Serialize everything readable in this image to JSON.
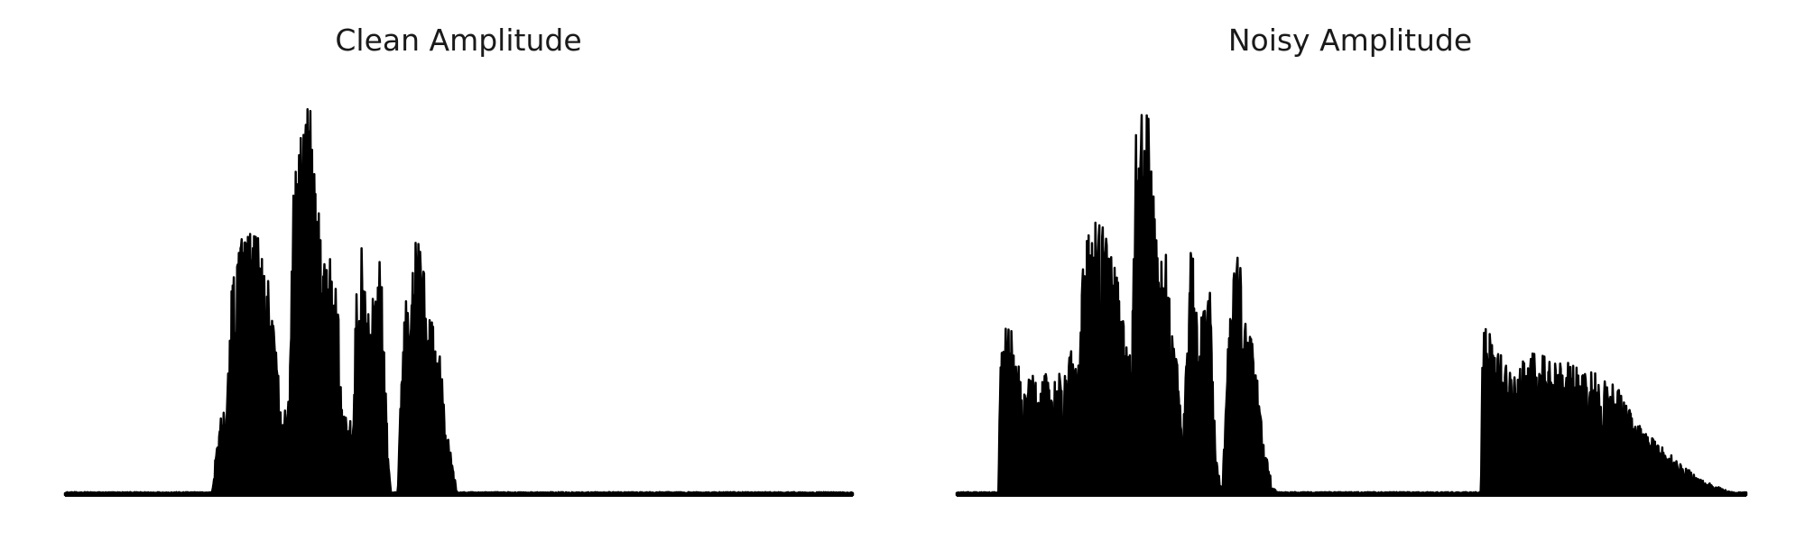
{
  "chart_data": [
    {
      "type": "area",
      "title": "Clean Amplitude",
      "axes_visible": false,
      "xlim": [
        0,
        100
      ],
      "ylim": [
        0,
        1.0
      ],
      "fill_color": "#000000",
      "envelope": [
        [
          0,
          0.0
        ],
        [
          18.5,
          0.0
        ],
        [
          18.8,
          0.02
        ],
        [
          19.2,
          0.12
        ],
        [
          19.8,
          0.2
        ],
        [
          20.5,
          0.22
        ],
        [
          21.0,
          0.48
        ],
        [
          21.6,
          0.58
        ],
        [
          22.2,
          0.64
        ],
        [
          22.8,
          0.62
        ],
        [
          23.4,
          0.66
        ],
        [
          24.2,
          0.64
        ],
        [
          25.2,
          0.6
        ],
        [
          26.0,
          0.5
        ],
        [
          26.6,
          0.38
        ],
        [
          27.2,
          0.28
        ],
        [
          27.8,
          0.2
        ],
        [
          28.4,
          0.26
        ],
        [
          29.0,
          0.76
        ],
        [
          29.6,
          0.86
        ],
        [
          30.2,
          0.94
        ],
        [
          30.8,
          1.0
        ],
        [
          31.5,
          0.9
        ],
        [
          32.0,
          0.74
        ],
        [
          32.6,
          0.64
        ],
        [
          33.2,
          0.6
        ],
        [
          33.8,
          0.6
        ],
        [
          34.6,
          0.54
        ],
        [
          35.2,
          0.2
        ],
        [
          36.6,
          0.18
        ],
        [
          37.0,
          0.6
        ],
        [
          37.6,
          0.66
        ],
        [
          38.2,
          0.5
        ],
        [
          38.8,
          0.44
        ],
        [
          39.4,
          0.56
        ],
        [
          40.2,
          0.62
        ],
        [
          41.0,
          0.1
        ],
        [
          41.4,
          0.0
        ],
        [
          42.2,
          0.0
        ],
        [
          42.6,
          0.3
        ],
        [
          43.2,
          0.5
        ],
        [
          44.0,
          0.52
        ],
        [
          44.6,
          0.66
        ],
        [
          45.2,
          0.62
        ],
        [
          45.8,
          0.5
        ],
        [
          46.6,
          0.42
        ],
        [
          47.6,
          0.38
        ],
        [
          48.2,
          0.2
        ],
        [
          49.0,
          0.1
        ],
        [
          49.8,
          0.0
        ],
        [
          100,
          0.0
        ]
      ]
    },
    {
      "type": "area",
      "title": "Noisy Amplitude",
      "axes_visible": false,
      "xlim": [
        0,
        100
      ],
      "ylim": [
        0,
        1.0
      ],
      "fill_color": "#000000",
      "envelope": [
        [
          0,
          0.0
        ],
        [
          5.3,
          0.0
        ],
        [
          5.6,
          0.42
        ],
        [
          6.0,
          0.43
        ],
        [
          7.0,
          0.4
        ],
        [
          7.8,
          0.32
        ],
        [
          8.6,
          0.3
        ],
        [
          9.4,
          0.3
        ],
        [
          10.4,
          0.28
        ],
        [
          11.4,
          0.3
        ],
        [
          12.6,
          0.3
        ],
        [
          13.8,
          0.3
        ],
        [
          14.6,
          0.38
        ],
        [
          15.4,
          0.33
        ],
        [
          16.0,
          0.58
        ],
        [
          16.8,
          0.68
        ],
        [
          17.6,
          0.74
        ],
        [
          18.6,
          0.7
        ],
        [
          19.4,
          0.62
        ],
        [
          20.2,
          0.55
        ],
        [
          21.0,
          0.46
        ],
        [
          21.6,
          0.36
        ],
        [
          22.2,
          0.4
        ],
        [
          22.6,
          0.88
        ],
        [
          23.2,
          0.92
        ],
        [
          23.8,
          1.0
        ],
        [
          24.4,
          0.9
        ],
        [
          24.8,
          0.76
        ],
        [
          25.4,
          0.62
        ],
        [
          26.0,
          0.58
        ],
        [
          26.8,
          0.6
        ],
        [
          27.8,
          0.38
        ],
        [
          28.6,
          0.12
        ],
        [
          29.0,
          0.3
        ],
        [
          29.6,
          0.62
        ],
        [
          30.2,
          0.56
        ],
        [
          30.8,
          0.4
        ],
        [
          31.4,
          0.52
        ],
        [
          32.0,
          0.58
        ],
        [
          32.8,
          0.1
        ],
        [
          33.6,
          0.0
        ],
        [
          34.0,
          0.2
        ],
        [
          34.6,
          0.5
        ],
        [
          35.2,
          0.56
        ],
        [
          35.8,
          0.6
        ],
        [
          36.6,
          0.42
        ],
        [
          37.4,
          0.38
        ],
        [
          38.0,
          0.3
        ],
        [
          39.0,
          0.12
        ],
        [
          40.0,
          0.02
        ],
        [
          41.0,
          0.0
        ],
        [
          66.4,
          0.0
        ],
        [
          66.6,
          0.42
        ],
        [
          67.4,
          0.4
        ],
        [
          68.4,
          0.36
        ],
        [
          69.6,
          0.32
        ],
        [
          70.8,
          0.3
        ],
        [
          72.0,
          0.34
        ],
        [
          73.2,
          0.36
        ],
        [
          74.4,
          0.34
        ],
        [
          75.6,
          0.32
        ],
        [
          76.8,
          0.34
        ],
        [
          78.0,
          0.32
        ],
        [
          79.2,
          0.3
        ],
        [
          80.4,
          0.3
        ],
        [
          81.6,
          0.3
        ],
        [
          82.8,
          0.28
        ],
        [
          84.0,
          0.26
        ],
        [
          85.0,
          0.22
        ],
        [
          86.0,
          0.18
        ],
        [
          87.0,
          0.16
        ],
        [
          88.0,
          0.14
        ],
        [
          89.2,
          0.12
        ],
        [
          90.4,
          0.1
        ],
        [
          91.6,
          0.08
        ],
        [
          92.8,
          0.06
        ],
        [
          94.0,
          0.04
        ],
        [
          95.2,
          0.03
        ],
        [
          96.4,
          0.02
        ],
        [
          97.6,
          0.01
        ],
        [
          100,
          0.0
        ]
      ]
    }
  ]
}
